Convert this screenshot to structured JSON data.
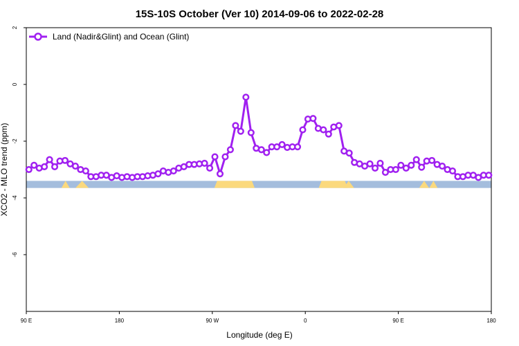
{
  "chart_data": {
    "type": "line",
    "title": "15S-10S October (Ver 10)   2014-09-06 to 2022-02-28",
    "xlabel": "Longitude (deg E)",
    "ylabel": "XCO2 - MLO trend (ppm)",
    "x_tick_labels": [
      "90 E",
      "180",
      "90 W",
      "0",
      "90 E",
      "180"
    ],
    "x_tick_lon": [
      90,
      180,
      270,
      360,
      450,
      540
    ],
    "xlim": [
      90,
      540
    ],
    "ylim": [
      -8,
      2
    ],
    "y_ticks": [
      2,
      0,
      -2,
      -4,
      -6
    ],
    "series": [
      {
        "name": "Land (Nadir&Glint) and Ocean (Glint)",
        "color": "#a020f0",
        "x": [
          92.5,
          97.5,
          102.5,
          107.5,
          112.5,
          117.5,
          122.5,
          127.5,
          132.5,
          137.5,
          142.5,
          147.5,
          152.5,
          157.5,
          162.5,
          167.5,
          172.5,
          177.5,
          182.5,
          187.5,
          192.5,
          197.5,
          202.5,
          207.5,
          212.5,
          217.5,
          222.5,
          227.5,
          232.5,
          237.5,
          242.5,
          247.5,
          252.5,
          257.5,
          262.5,
          267.5,
          272.5,
          277.5,
          282.5,
          287.5,
          292.5,
          297.5,
          302.5,
          307.5,
          312.5,
          317.5,
          322.5,
          327.5,
          332.5,
          337.5,
          342.5,
          347.5,
          352.5,
          357.5,
          362.5,
          367.5,
          372.5,
          377.5,
          382.5,
          387.5,
          392.5,
          397.5,
          402.5,
          407.5,
          412.5,
          417.5,
          422.5,
          427.5,
          432.5,
          437.5,
          442.5,
          447.5,
          452.5,
          457.5,
          462.5,
          467.5,
          472.5,
          477.5,
          482.5,
          487.5,
          492.5,
          497.5,
          502.5,
          507.5,
          512.5,
          517.5,
          522.5,
          527.5,
          532.5,
          537.5
        ],
        "y": [
          -3.0,
          -2.85,
          -2.95,
          -2.9,
          -2.65,
          -2.9,
          -2.7,
          -2.68,
          -2.8,
          -2.88,
          -3.0,
          -3.05,
          -3.25,
          -3.25,
          -3.2,
          -3.2,
          -3.28,
          -3.22,
          -3.28,
          -3.25,
          -3.28,
          -3.25,
          -3.25,
          -3.22,
          -3.2,
          -3.15,
          -3.05,
          -3.1,
          -3.05,
          -2.95,
          -2.9,
          -2.82,
          -2.82,
          -2.8,
          -2.78,
          -2.95,
          -2.55,
          -3.15,
          -2.55,
          -2.3,
          -1.45,
          -1.65,
          -0.45,
          -1.7,
          -2.25,
          -2.3,
          -2.4,
          -2.2,
          -2.2,
          -2.12,
          -2.22,
          -2.2,
          -2.2,
          -1.6,
          -1.22,
          -1.2,
          -1.55,
          -1.6,
          -1.75,
          -1.5,
          -1.45,
          -2.35,
          -2.42,
          -2.75,
          -2.8,
          -2.88,
          -2.8,
          -2.95,
          -2.78,
          -3.1,
          -3.0,
          -3.0,
          -2.85,
          -2.95,
          -2.85,
          -2.65,
          -2.92,
          -2.7,
          -2.68,
          -2.82,
          -2.88,
          -3.0,
          -3.05,
          -3.25,
          -3.25,
          -3.2,
          -3.2,
          -3.28,
          -3.2,
          -3.2
        ]
      }
    ],
    "surface_bar": {
      "y_range": [
        -3.65,
        -3.4
      ],
      "ocean_color": "#a4bddd",
      "land_color": "#fbd97d",
      "land_spans": [
        [
          272,
          311
        ],
        [
          373,
          401
        ]
      ],
      "land_bumps": [
        [
          128,
          1.0
        ],
        [
          144,
          1.6
        ],
        [
          475,
          1.2
        ],
        [
          484,
          1.0
        ],
        [
          402,
          1.3
        ]
      ]
    },
    "legend_position": "top-left",
    "grid": false
  }
}
